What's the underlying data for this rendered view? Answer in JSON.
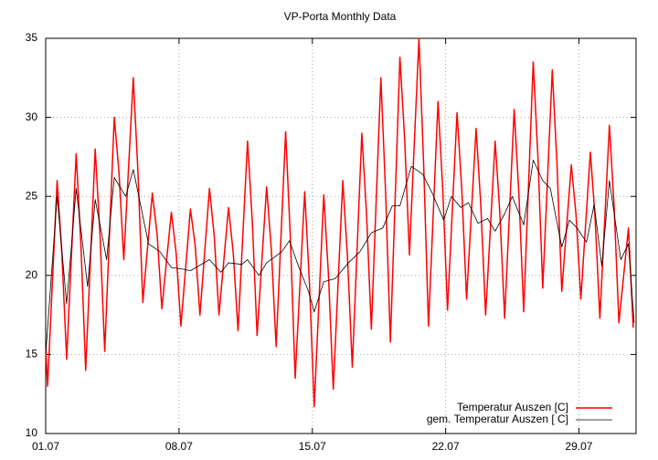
{
  "chart_data": {
    "type": "line",
    "title": "VP-Porta Monthly Data",
    "xlim": [
      1,
      32
    ],
    "ylim": [
      10,
      35
    ],
    "xticks": [
      {
        "value": 1,
        "label": "01.07"
      },
      {
        "value": 8,
        "label": "08.07"
      },
      {
        "value": 15,
        "label": "15.07"
      },
      {
        "value": 22,
        "label": "22.07"
      },
      {
        "value": 29,
        "label": "29.07"
      }
    ],
    "yticks": [
      10,
      15,
      20,
      25,
      30,
      35
    ],
    "grid": true,
    "legend": "bottom-right",
    "series": [
      {
        "name": "Temperatur Auszen [C]",
        "color": "#ff0000",
        "x": [
          1,
          1.1,
          1.35,
          1.6,
          1.85,
          2.1,
          2.35,
          2.6,
          2.85,
          3.1,
          3.35,
          3.6,
          3.85,
          4.1,
          4.35,
          4.6,
          4.85,
          5.1,
          5.35,
          5.6,
          5.85,
          6.1,
          6.35,
          6.6,
          6.85,
          7.1,
          7.35,
          7.6,
          7.85,
          8.1,
          8.35,
          8.6,
          8.85,
          9.1,
          9.35,
          9.6,
          9.85,
          10.1,
          10.35,
          10.6,
          10.85,
          11.1,
          11.35,
          11.6,
          11.85,
          12.1,
          12.35,
          12.6,
          12.85,
          13.1,
          13.35,
          13.6,
          13.85,
          14.1,
          14.35,
          14.6,
          14.85,
          15.1,
          15.35,
          15.6,
          15.85,
          16.1,
          16.35,
          16.6,
          16.85,
          17.1,
          17.35,
          17.6,
          17.85,
          18.1,
          18.35,
          18.6,
          18.85,
          19.1,
          19.35,
          19.6,
          19.85,
          20.1,
          20.35,
          20.6,
          20.85,
          21.1,
          21.35,
          21.6,
          21.85,
          22.1,
          22.35,
          22.6,
          22.85,
          23.1,
          23.35,
          23.6,
          23.85,
          24.1,
          24.35,
          24.6,
          24.85,
          25.1,
          25.35,
          25.6,
          25.85,
          26.1,
          26.35,
          26.6,
          26.85,
          27.1,
          27.35,
          27.6,
          27.85,
          28.1,
          28.35,
          28.6,
          28.85,
          29.1,
          29.35,
          29.6,
          29.85,
          30.1,
          30.35,
          30.6,
          30.85,
          31.1,
          31.35,
          31.6,
          31.85
        ],
        "values": [
          15.5,
          13,
          19.5,
          26,
          21.4,
          14.7,
          21.2,
          27.7,
          21.9,
          14,
          21,
          28,
          22.6,
          15.2,
          22.6,
          30,
          26.5,
          21,
          26.8,
          32.5,
          26.4,
          18.3,
          21.8,
          25.2,
          22.6,
          17.9,
          21,
          24,
          21.4,
          16.8,
          20.5,
          24.2,
          21.9,
          17.5,
          21.5,
          25.5,
          22.5,
          17.5,
          20.9,
          24.3,
          21.4,
          16.5,
          22.5,
          28.5,
          23.4,
          16.2,
          20.9,
          25.6,
          21.6,
          15.5,
          22.3,
          29.1,
          22.3,
          13.5,
          19.4,
          25.3,
          19.5,
          11.7,
          18.4,
          25.1,
          20,
          12.8,
          19.4,
          26,
          21.1,
          14.2,
          21.6,
          29,
          23.8,
          16.6,
          24.6,
          32.5,
          25.2,
          15.8,
          24.8,
          33.8,
          28.6,
          21.3,
          28.2,
          35,
          26.9,
          16.8,
          23.9,
          31,
          25.4,
          17.8,
          24.1,
          30.3,
          25.4,
          18.5,
          23.9,
          29.3,
          24.4,
          17.5,
          23,
          28.5,
          23.9,
          17.3,
          23.9,
          30.5,
          25.1,
          17.7,
          25.6,
          33.5,
          27.4,
          19.2,
          26.1,
          33,
          27,
          19,
          23,
          27,
          23.8,
          18.5,
          23.2,
          27.8,
          23.6,
          17.3,
          23.4,
          29.5,
          24.3,
          17,
          20,
          23,
          16.7
        ]
      },
      {
        "name": "gem. Temperatur Auszen [ C]",
        "color": "#000000",
        "x": [
          1.0,
          1.6,
          2.1,
          2.6,
          3.2,
          3.6,
          4.2,
          4.6,
          5.2,
          5.6,
          6.4,
          7,
          7.6,
          8.2,
          8.6,
          9.6,
          10.2,
          10.6,
          11.3,
          11.6,
          12.2,
          12.6,
          13.4,
          13.8,
          14.3,
          14.8,
          15.1,
          15.6,
          16.2,
          16.9,
          17.5,
          18.1,
          18.7,
          19.2,
          19.6,
          20.2,
          20.8,
          21.3,
          21.9,
          22.3,
          22.8,
          23.2,
          23.7,
          24.2,
          24.6,
          25.1,
          25.5,
          26.1,
          26.6,
          27.1,
          27.5,
          28.1,
          28.5,
          28.9,
          29.4,
          29.8,
          30.2,
          30.6,
          31.2,
          31.6,
          31.9
        ],
        "values": [
          15,
          25,
          18.2,
          25.5,
          19.3,
          24.8,
          21,
          26.2,
          25,
          26.7,
          22,
          21.5,
          20.5,
          20.4,
          20.3,
          21,
          20.2,
          20.8,
          20.7,
          21,
          20,
          20.8,
          21.5,
          22.2,
          20.5,
          19,
          17.7,
          19.6,
          19.8,
          20.8,
          21.5,
          22.7,
          23,
          24.4,
          24.4,
          26.9,
          26.4,
          25.2,
          23.5,
          25,
          24.3,
          24.6,
          23.3,
          23.6,
          22.8,
          23.9,
          25,
          23.2,
          27.3,
          26,
          25.5,
          21.8,
          23.5,
          23,
          22.1,
          24.5,
          20.6,
          26,
          21,
          22,
          17
        ]
      }
    ]
  }
}
